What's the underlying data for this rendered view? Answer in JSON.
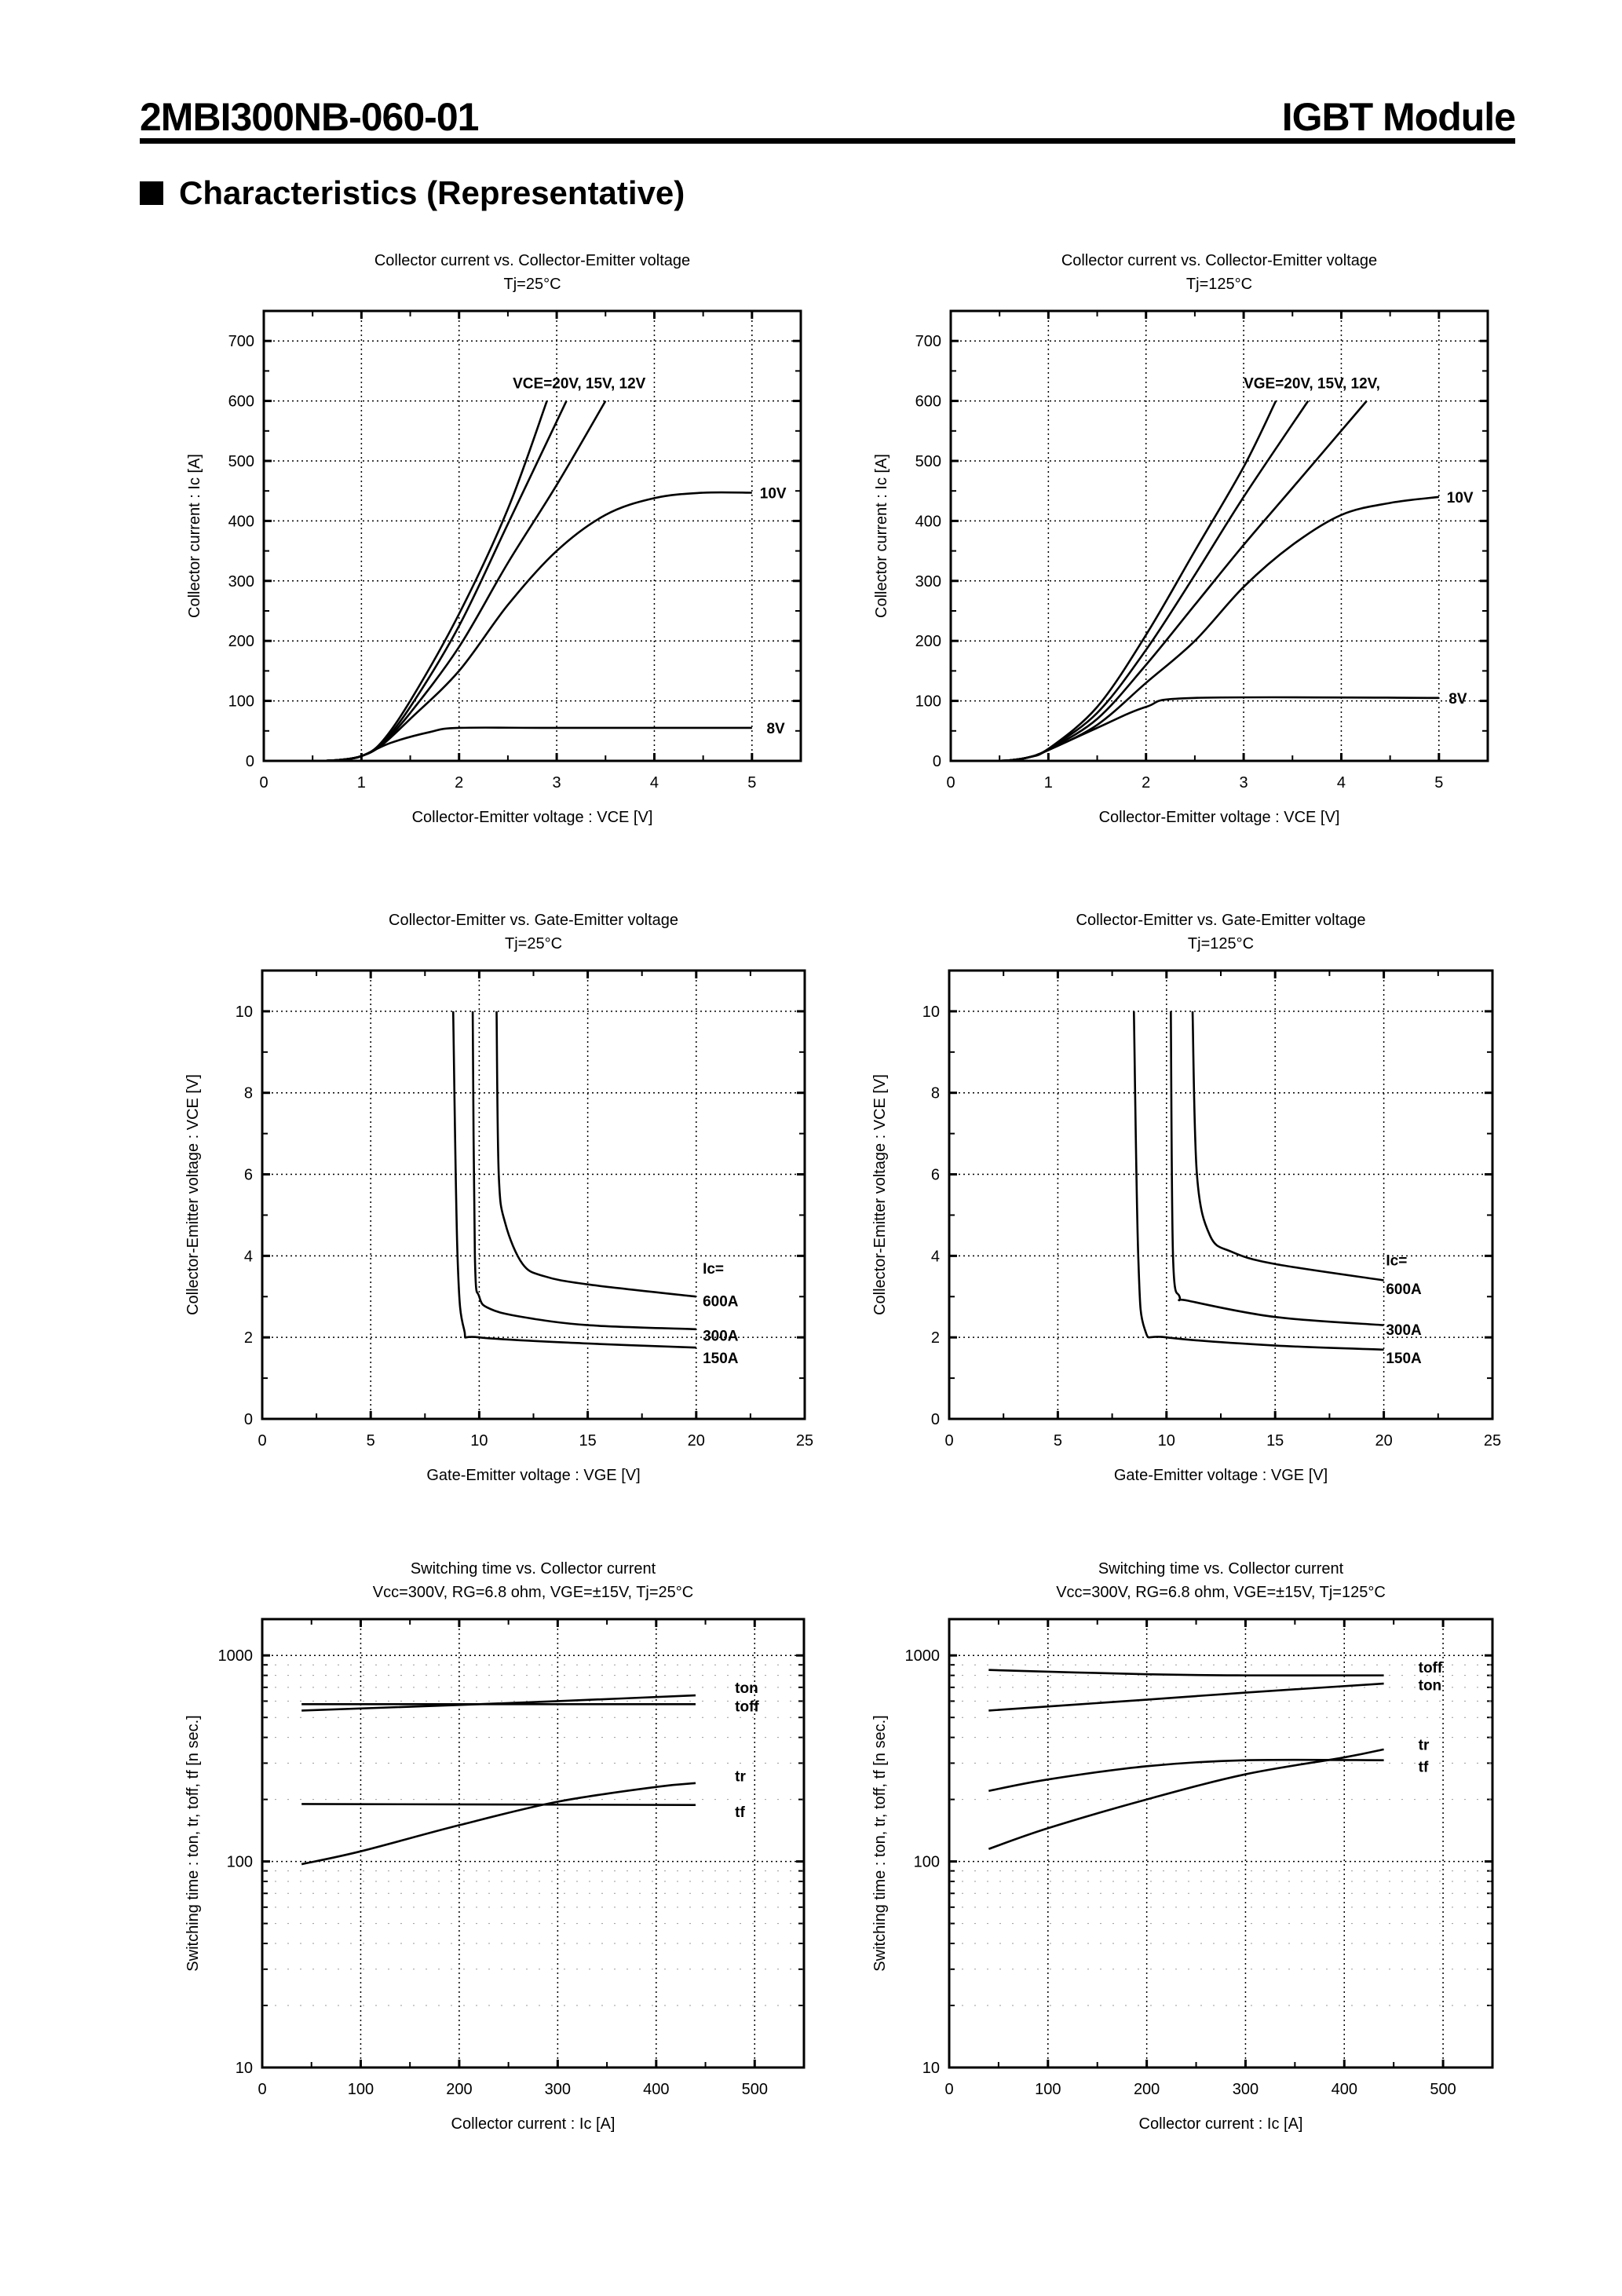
{
  "header": {
    "part_number": "2MBI300NB-060-01",
    "product_type": "IGBT Module",
    "section_title": "Characteristics (Representative)"
  },
  "chart_data": [
    {
      "type": "line",
      "title": "Collector current  vs.  Collector-Emitter  voltage",
      "subtitle": "Tj=25°C",
      "xlabel": "Collector-Emitter  voltage  :  VCE [V]",
      "ylabel": "Collector  current  :  Ic [A]",
      "xlim": [
        0,
        5.5
      ],
      "ylim": [
        0,
        750
      ],
      "yscale": "linear",
      "grid": true,
      "xticks": [
        0,
        1,
        2,
        3,
        4,
        5
      ],
      "yticks": [
        0,
        100,
        200,
        300,
        400,
        500,
        600,
        700
      ],
      "series": [
        {
          "x": [
            0.6,
            0.8,
            1,
            1.2,
            1.5,
            2,
            2.5,
            2.9
          ],
          "y": [
            0,
            2,
            8,
            30,
            100,
            245,
            420,
            600
          ]
        },
        {
          "x": [
            0.6,
            0.8,
            1,
            1.2,
            1.5,
            2,
            2.5,
            3.1
          ],
          "y": [
            0,
            2,
            8,
            28,
            90,
            225,
            395,
            600
          ]
        },
        {
          "x": [
            0.6,
            0.8,
            1,
            1.2,
            1.5,
            2,
            2.5,
            3,
            3.5
          ],
          "y": [
            0,
            2,
            8,
            26,
            80,
            190,
            330,
            460,
            600
          ]
        },
        {
          "x": [
            0.6,
            0.8,
            1,
            1.2,
            1.5,
            2,
            2.5,
            3,
            3.5,
            4,
            4.5,
            5
          ],
          "y": [
            0,
            2,
            8,
            25,
            70,
            150,
            260,
            350,
            410,
            438,
            447,
            447
          ]
        },
        {
          "x": [
            0.6,
            0.8,
            1,
            1.3,
            1.7,
            2,
            3,
            5
          ],
          "y": [
            0,
            2,
            8,
            30,
            48,
            55,
            55,
            55
          ]
        }
      ],
      "annotations": [
        {
          "text": "VCE=20V, 15V, 12V",
          "x": 2.55,
          "y": 630
        },
        {
          "text": "10V",
          "x": 5.08,
          "y": 447
        },
        {
          "text": "8V",
          "x": 5.15,
          "y": 55
        }
      ]
    },
    {
      "type": "line",
      "title": "Collector current  vs.  Collector-Emitter  voltage",
      "subtitle": "Tj=125°C",
      "xlabel": "Collector-Emitter  voltage  :  VCE [V]",
      "ylabel": "Collector  current  :  Ic [A]",
      "xlim": [
        0,
        5.5
      ],
      "ylim": [
        0,
        750
      ],
      "yscale": "linear",
      "grid": true,
      "xticks": [
        0,
        1,
        2,
        3,
        4,
        5
      ],
      "yticks": [
        0,
        100,
        200,
        300,
        400,
        500,
        600,
        700
      ],
      "series": [
        {
          "x": [
            0.4,
            0.6,
            0.8,
            1,
            1.5,
            2,
            2.5,
            3,
            3.33
          ],
          "y": [
            0,
            1,
            6,
            20,
            90,
            210,
            350,
            490,
            600
          ]
        },
        {
          "x": [
            0.4,
            0.6,
            0.8,
            1,
            1.5,
            2,
            2.5,
            3,
            3.66
          ],
          "y": [
            0,
            1,
            6,
            20,
            80,
            185,
            310,
            440,
            600
          ]
        },
        {
          "x": [
            0.4,
            0.6,
            0.8,
            1,
            1.5,
            2,
            2.5,
            3,
            3.5,
            4.26
          ],
          "y": [
            0,
            1,
            6,
            19,
            70,
            160,
            260,
            360,
            455,
            600
          ]
        },
        {
          "x": [
            0.4,
            0.6,
            0.8,
            1,
            1.5,
            2,
            2.5,
            3,
            3.5,
            4,
            4.5,
            5
          ],
          "y": [
            0,
            1,
            6,
            18,
            60,
            130,
            200,
            290,
            360,
            410,
            430,
            440
          ]
        },
        {
          "x": [
            0.4,
            0.6,
            0.8,
            1,
            1.5,
            2,
            2.5,
            5
          ],
          "y": [
            0,
            1,
            6,
            18,
            55,
            90,
            105,
            105
          ]
        }
      ],
      "annotations": [
        {
          "text": "VGE=20V, 15V, 12V,",
          "x": 3,
          "y": 630
        },
        {
          "text": "10V",
          "x": 5.08,
          "y": 440
        },
        {
          "text": "8V",
          "x": 5.1,
          "y": 105
        }
      ]
    },
    {
      "type": "line",
      "title": "Collector-Emitter  vs.  Gate-Emitter  voltage",
      "subtitle": "Tj=25°C",
      "xlabel": "Gate-Emitter  voltage  :  VGE [V]",
      "ylabel": "Collector-Emitter  voltage  :  VCE [V]",
      "xlim": [
        0,
        25
      ],
      "ylim": [
        0,
        11
      ],
      "yscale": "linear",
      "grid": true,
      "xticks": [
        0,
        5,
        10,
        15,
        20,
        25
      ],
      "yticks": [
        0,
        2,
        4,
        6,
        8,
        10
      ],
      "series": [
        {
          "x": [
            10.8,
            10.9,
            11.2,
            12,
            13,
            15,
            20
          ],
          "y": [
            10,
            6,
            4.8,
            3.8,
            3.5,
            3.3,
            3.0
          ]
        },
        {
          "x": [
            9.7,
            9.8,
            10,
            10.5,
            12,
            15,
            20
          ],
          "y": [
            10,
            4,
            3,
            2.7,
            2.5,
            2.3,
            2.2
          ]
        },
        {
          "x": [
            8.8,
            9,
            9.3,
            10,
            15,
            20
          ],
          "y": [
            10,
            4,
            2.2,
            2.0,
            1.85,
            1.75
          ]
        }
      ],
      "annotations": [
        {
          "text": "Ic=",
          "x": 20.3,
          "y": 3.7
        },
        {
          "text": "600A",
          "x": 20.3,
          "y": 2.9
        },
        {
          "text": "300A",
          "x": 20.3,
          "y": 2.05
        },
        {
          "text": "150A",
          "x": 20.3,
          "y": 1.5
        }
      ]
    },
    {
      "type": "line",
      "title": "Collector-Emitter  vs.  Gate-Emitter  voltage",
      "subtitle": "Tj=125°C",
      "xlabel": "Gate-Emitter  voltage  :  VGE [V]",
      "ylabel": "Collector-Emitter  voltage  :  VCE [V]",
      "xlim": [
        0,
        25
      ],
      "ylim": [
        0,
        11
      ],
      "yscale": "linear",
      "grid": true,
      "xticks": [
        0,
        5,
        10,
        15,
        20,
        25
      ],
      "yticks": [
        0,
        2,
        4,
        6,
        8,
        10
      ],
      "series": [
        {
          "x": [
            11.2,
            11.4,
            12,
            13,
            15,
            20
          ],
          "y": [
            10,
            6,
            4.5,
            4.1,
            3.8,
            3.4
          ]
        },
        {
          "x": [
            10.2,
            10.3,
            10.6,
            11,
            15,
            20
          ],
          "y": [
            10,
            4,
            3,
            2.9,
            2.5,
            2.3
          ]
        },
        {
          "x": [
            8.5,
            8.7,
            9,
            10,
            15,
            20
          ],
          "y": [
            10,
            4,
            2.2,
            2.0,
            1.8,
            1.7
          ]
        }
      ],
      "annotations": [
        {
          "text": "Ic=",
          "x": 20.1,
          "y": 3.9
        },
        {
          "text": "600A",
          "x": 20.1,
          "y": 3.2
        },
        {
          "text": "300A",
          "x": 20.1,
          "y": 2.2
        },
        {
          "text": "150A",
          "x": 20.1,
          "y": 1.5
        }
      ]
    },
    {
      "type": "line",
      "title": "Switching time  vs. Collector current",
      "subtitle": "Vcc=300V, RG=6.8 ohm, VGE=±15V, Tj=25°C",
      "xlabel": "Collector  current  :  Ic [A]",
      "ylabel": "Switching  time  :  ton,  tr,  toff,  tf  [n sec.]",
      "xlim": [
        0,
        550
      ],
      "ylim": [
        10,
        1500
      ],
      "yscale": "log",
      "grid": true,
      "xticks": [
        0,
        100,
        200,
        300,
        400,
        500
      ],
      "yticks": [
        10,
        100,
        1000
      ],
      "series": [
        {
          "name": "ton",
          "x": [
            40,
            200,
            300,
            440
          ],
          "y": [
            540,
            575,
            600,
            640
          ]
        },
        {
          "name": "toff",
          "x": [
            40,
            440
          ],
          "y": [
            580,
            580
          ]
        },
        {
          "name": "tr",
          "x": [
            40,
            100,
            200,
            300,
            400,
            440
          ],
          "y": [
            97,
            112,
            150,
            195,
            230,
            240
          ]
        },
        {
          "name": "tf",
          "x": [
            40,
            440
          ],
          "y": [
            190,
            188
          ]
        }
      ],
      "annotations": [
        {
          "text": "ton",
          "x": 480,
          "y": 700
        },
        {
          "text": "toff",
          "x": 480,
          "y": 570
        },
        {
          "text": "tr",
          "x": 480,
          "y": 260
        },
        {
          "text": "tf",
          "x": 480,
          "y": 175
        }
      ]
    },
    {
      "type": "line",
      "title": "Switching time  vs. Collector current",
      "subtitle": "Vcc=300V, RG=6.8 ohm, VGE=±15V, Tj=125°C",
      "xlabel": "Collector  current  :  Ic [A]",
      "ylabel": "Switching  time  :  ton,  tr,  toff,  tf  [n sec.]",
      "xlim": [
        0,
        550
      ],
      "ylim": [
        10,
        1500
      ],
      "yscale": "log",
      "grid": true,
      "xticks": [
        0,
        100,
        200,
        300,
        400,
        500
      ],
      "yticks": [
        10,
        100,
        1000
      ],
      "series": [
        {
          "name": "toff",
          "x": [
            40,
            200,
            300,
            440
          ],
          "y": [
            850,
            810,
            800,
            800
          ]
        },
        {
          "name": "ton",
          "x": [
            40,
            200,
            300,
            440
          ],
          "y": [
            540,
            610,
            660,
            730
          ]
        },
        {
          "name": "tr",
          "x": [
            40,
            100,
            200,
            300,
            400,
            440
          ],
          "y": [
            115,
            145,
            200,
            265,
            320,
            350
          ]
        },
        {
          "name": "tf",
          "x": [
            40,
            100,
            200,
            300,
            440
          ],
          "y": [
            220,
            250,
            290,
            310,
            310
          ]
        }
      ],
      "annotations": [
        {
          "text": "toff",
          "x": 475,
          "y": 880
        },
        {
          "text": "ton",
          "x": 475,
          "y": 720
        },
        {
          "text": "tr",
          "x": 475,
          "y": 370
        },
        {
          "text": "tf",
          "x": 475,
          "y": 290
        }
      ]
    }
  ]
}
